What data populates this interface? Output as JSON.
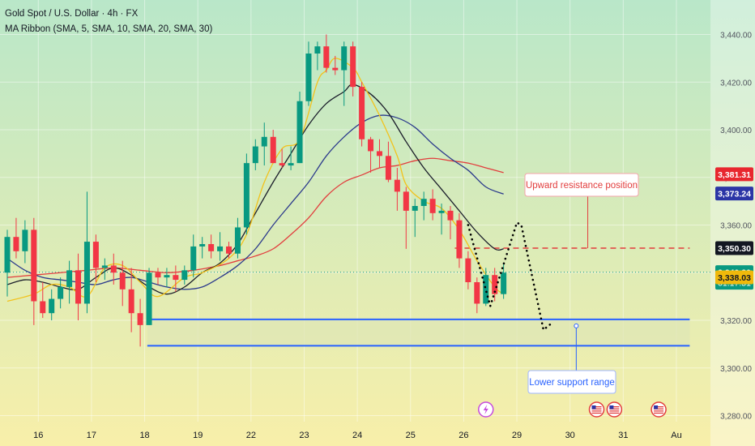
{
  "header": {
    "title": "Gold Spot / U.S. Dollar · 4h · FX",
    "indicator": "MA Ribbon (SMA, 5, SMA, 10, SMA, 20, SMA, 30)"
  },
  "colors": {
    "bull": "#089981",
    "bear": "#f23645",
    "sma5": "#f2c21b",
    "sma10": "#1b1e2b",
    "sma20": "#2c3a8c",
    "sma30": "#e23d3d",
    "resistance": "#e23d3d",
    "support": "#2962ff",
    "support_fill": "#dfe5b6",
    "projection": "#000000",
    "bg_top": "#b9e7c9",
    "bg_bottom": "#f8efa9"
  },
  "chart_data": {
    "type": "candlestick",
    "symbol": "Gold Spot / U.S. Dollar",
    "timeframe": "4h",
    "ylim": [
      3276,
      3446
    ],
    "y_ticks": [
      3280,
      3300,
      3320,
      3340,
      3360,
      3380,
      3400,
      3420,
      3440
    ],
    "y_tick_labels": [
      "3,280.00",
      "3,300.00",
      "3,320.00",
      "3,340.00",
      "3,360.00",
      "3,380.00",
      "3,400.00",
      "3,420.00",
      "3,440.00"
    ],
    "x_ticks": [
      {
        "label": "16",
        "index": 3.5
      },
      {
        "label": "17",
        "index": 9.5
      },
      {
        "label": "18",
        "index": 15.5
      },
      {
        "label": "19",
        "index": 21.5
      },
      {
        "label": "22",
        "index": 27.5
      },
      {
        "label": "23",
        "index": 33.5
      },
      {
        "label": "24",
        "index": 39.5
      },
      {
        "label": "25",
        "index": 45.5
      },
      {
        "label": "26",
        "index": 51.5
      },
      {
        "label": "29",
        "index": 57.5
      },
      {
        "label": "30",
        "index": 63.5
      },
      {
        "label": "31",
        "index": 69.5
      },
      {
        "label": "Au",
        "index": 75.5
      }
    ],
    "candles": [
      {
        "o": 3340,
        "h": 3358,
        "l": 3330,
        "c": 3355
      },
      {
        "o": 3355,
        "h": 3363,
        "l": 3346,
        "c": 3349
      },
      {
        "o": 3349,
        "h": 3362,
        "l": 3344,
        "c": 3358
      },
      {
        "o": 3358,
        "h": 3363,
        "l": 3318,
        "c": 3328
      },
      {
        "o": 3328,
        "h": 3336,
        "l": 3321,
        "c": 3323
      },
      {
        "o": 3323,
        "h": 3333,
        "l": 3320,
        "c": 3329
      },
      {
        "o": 3329,
        "h": 3338,
        "l": 3325,
        "c": 3334
      },
      {
        "o": 3334,
        "h": 3345,
        "l": 3327,
        "c": 3341
      },
      {
        "o": 3341,
        "h": 3348,
        "l": 3320,
        "c": 3327
      },
      {
        "o": 3327,
        "h": 3374,
        "l": 3323,
        "c": 3353
      },
      {
        "o": 3353,
        "h": 3356,
        "l": 3336,
        "c": 3342
      },
      {
        "o": 3342,
        "h": 3346,
        "l": 3337,
        "c": 3343
      },
      {
        "o": 3343,
        "h": 3348,
        "l": 3335,
        "c": 3340
      },
      {
        "o": 3340,
        "h": 3345,
        "l": 3326,
        "c": 3333
      },
      {
        "o": 3333,
        "h": 3342,
        "l": 3315,
        "c": 3323
      },
      {
        "o": 3323,
        "h": 3329,
        "l": 3309,
        "c": 3318
      },
      {
        "o": 3318,
        "h": 3342,
        "l": 3318,
        "c": 3340
      },
      {
        "o": 3340,
        "h": 3342,
        "l": 3335,
        "c": 3338
      },
      {
        "o": 3338,
        "h": 3342,
        "l": 3334,
        "c": 3339
      },
      {
        "o": 3339,
        "h": 3343,
        "l": 3332,
        "c": 3337
      },
      {
        "o": 3337,
        "h": 3343,
        "l": 3335,
        "c": 3341
      },
      {
        "o": 3341,
        "h": 3356,
        "l": 3338,
        "c": 3351
      },
      {
        "o": 3351,
        "h": 3355,
        "l": 3346,
        "c": 3352
      },
      {
        "o": 3352,
        "h": 3356,
        "l": 3346,
        "c": 3349
      },
      {
        "o": 3349,
        "h": 3357,
        "l": 3345,
        "c": 3351
      },
      {
        "o": 3351,
        "h": 3353,
        "l": 3346,
        "c": 3348
      },
      {
        "o": 3348,
        "h": 3363,
        "l": 3346,
        "c": 3359
      },
      {
        "o": 3359,
        "h": 3390,
        "l": 3356,
        "c": 3386
      },
      {
        "o": 3386,
        "h": 3396,
        "l": 3383,
        "c": 3393
      },
      {
        "o": 3393,
        "h": 3403,
        "l": 3385,
        "c": 3397
      },
      {
        "o": 3397,
        "h": 3400,
        "l": 3386,
        "c": 3386
      },
      {
        "o": 3386,
        "h": 3392,
        "l": 3384,
        "c": 3385
      },
      {
        "o": 3385,
        "h": 3393,
        "l": 3383,
        "c": 3386
      },
      {
        "o": 3386,
        "h": 3416,
        "l": 3386,
        "c": 3412
      },
      {
        "o": 3412,
        "h": 3437,
        "l": 3410,
        "c": 3432
      },
      {
        "o": 3432,
        "h": 3437,
        "l": 3425,
        "c": 3435
      },
      {
        "o": 3435,
        "h": 3440,
        "l": 3424,
        "c": 3426
      },
      {
        "o": 3426,
        "h": 3431,
        "l": 3423,
        "c": 3425
      },
      {
        "o": 3425,
        "h": 3437,
        "l": 3410,
        "c": 3435
      },
      {
        "o": 3435,
        "h": 3437,
        "l": 3414,
        "c": 3418
      },
      {
        "o": 3418,
        "h": 3420,
        "l": 3393,
        "c": 3396
      },
      {
        "o": 3396,
        "h": 3397,
        "l": 3382,
        "c": 3391
      },
      {
        "o": 3391,
        "h": 3396,
        "l": 3384,
        "c": 3389
      },
      {
        "o": 3389,
        "h": 3395,
        "l": 3378,
        "c": 3379
      },
      {
        "o": 3379,
        "h": 3384,
        "l": 3366,
        "c": 3374
      },
      {
        "o": 3374,
        "h": 3376,
        "l": 3350,
        "c": 3366
      },
      {
        "o": 3366,
        "h": 3371,
        "l": 3355,
        "c": 3368
      },
      {
        "o": 3368,
        "h": 3374,
        "l": 3362,
        "c": 3371
      },
      {
        "o": 3371,
        "h": 3375,
        "l": 3362,
        "c": 3365
      },
      {
        "o": 3365,
        "h": 3369,
        "l": 3356,
        "c": 3366
      },
      {
        "o": 3366,
        "h": 3368,
        "l": 3354,
        "c": 3362
      },
      {
        "o": 3362,
        "h": 3365,
        "l": 3342,
        "c": 3346
      },
      {
        "o": 3346,
        "h": 3349,
        "l": 3333,
        "c": 3336
      },
      {
        "o": 3336,
        "h": 3338,
        "l": 3323,
        "c": 3327
      },
      {
        "o": 3327,
        "h": 3342,
        "l": 3326,
        "c": 3339
      },
      {
        "o": 3339,
        "h": 3342,
        "l": 3328,
        "c": 3331
      },
      {
        "o": 3331,
        "h": 3344,
        "l": 3329,
        "c": 3340
      }
    ],
    "sma5": [
      [
        0,
        3328
      ],
      [
        3,
        3331
      ],
      [
        5,
        3335
      ],
      [
        7,
        3334
      ],
      [
        9,
        3330
      ],
      [
        11,
        3342
      ],
      [
        13,
        3343
      ],
      [
        15,
        3336
      ],
      [
        17,
        3330
      ],
      [
        20,
        3338
      ],
      [
        22,
        3340
      ],
      [
        25,
        3346
      ],
      [
        27,
        3356
      ],
      [
        29,
        3378
      ],
      [
        31,
        3392
      ],
      [
        33,
        3396
      ],
      [
        35,
        3420
      ],
      [
        36,
        3425
      ],
      [
        37,
        3430
      ],
      [
        39,
        3426
      ],
      [
        40,
        3420
      ],
      [
        42,
        3406
      ],
      [
        44,
        3389
      ],
      [
        45,
        3377
      ],
      [
        47,
        3370
      ],
      [
        49,
        3367
      ],
      [
        51,
        3358
      ],
      [
        53,
        3345
      ],
      [
        55,
        3334
      ],
      [
        56,
        3331
      ]
    ],
    "sma10": [
      [
        0,
        3335
      ],
      [
        2,
        3337
      ],
      [
        4,
        3336
      ],
      [
        6,
        3334
      ],
      [
        8,
        3333
      ],
      [
        10,
        3338
      ],
      [
        12,
        3342
      ],
      [
        14,
        3339
      ],
      [
        16,
        3334
      ],
      [
        18,
        3331
      ],
      [
        20,
        3334
      ],
      [
        22,
        3340
      ],
      [
        24,
        3344
      ],
      [
        26,
        3352
      ],
      [
        28,
        3365
      ],
      [
        30,
        3378
      ],
      [
        32,
        3390
      ],
      [
        34,
        3402
      ],
      [
        36,
        3411
      ],
      [
        38,
        3416
      ],
      [
        39,
        3419
      ],
      [
        41,
        3415
      ],
      [
        43,
        3407
      ],
      [
        45,
        3395
      ],
      [
        47,
        3384
      ],
      [
        49,
        3375
      ],
      [
        51,
        3366
      ],
      [
        53,
        3357
      ],
      [
        55,
        3350
      ],
      [
        56,
        3350
      ]
    ],
    "sma20": [
      [
        0,
        3346
      ],
      [
        2,
        3341
      ],
      [
        4,
        3338
      ],
      [
        6,
        3337
      ],
      [
        8,
        3336
      ],
      [
        10,
        3335
      ],
      [
        12,
        3337
      ],
      [
        14,
        3338
      ],
      [
        16,
        3336
      ],
      [
        18,
        3334
      ],
      [
        20,
        3333
      ],
      [
        22,
        3334
      ],
      [
        24,
        3338
      ],
      [
        26,
        3343
      ],
      [
        28,
        3350
      ],
      [
        30,
        3360
      ],
      [
        32,
        3369
      ],
      [
        34,
        3378
      ],
      [
        36,
        3389
      ],
      [
        38,
        3397
      ],
      [
        40,
        3403
      ],
      [
        42,
        3406
      ],
      [
        44,
        3405
      ],
      [
        46,
        3401
      ],
      [
        48,
        3394
      ],
      [
        50,
        3388
      ],
      [
        52,
        3383
      ],
      [
        54,
        3376
      ],
      [
        56,
        3373
      ]
    ],
    "sma30": [
      [
        0,
        3338
      ],
      [
        3,
        3339
      ],
      [
        6,
        3340
      ],
      [
        9,
        3341
      ],
      [
        12,
        3342
      ],
      [
        15,
        3341
      ],
      [
        18,
        3340
      ],
      [
        21,
        3341
      ],
      [
        24,
        3343
      ],
      [
        26,
        3345
      ],
      [
        28,
        3347
      ],
      [
        30,
        3350
      ],
      [
        32,
        3356
      ],
      [
        34,
        3363
      ],
      [
        36,
        3372
      ],
      [
        38,
        3378
      ],
      [
        40,
        3381
      ],
      [
        42,
        3384
      ],
      [
        44,
        3385
      ],
      [
        46,
        3387
      ],
      [
        48,
        3388
      ],
      [
        50,
        3387
      ],
      [
        52,
        3386
      ],
      [
        54,
        3384
      ],
      [
        56,
        3382
      ]
    ],
    "current_price": 3340.2,
    "countdown": "01:17:51",
    "resistance": {
      "price": 3350.3,
      "x_start": 50.5,
      "x_end": 77,
      "label": "Upward resistance position"
    },
    "support_zone": {
      "upper": 3320.4,
      "lower": 3309.3,
      "x_start": 15.8,
      "x_end": 77,
      "label": "Lower support range"
    },
    "projection_path": [
      [
        52,
        3360
      ],
      [
        54.5,
        3326
      ],
      [
        57.5,
        3361
      ],
      [
        58,
        3360
      ],
      [
        60.5,
        3316
      ],
      [
        61.5,
        3319
      ]
    ],
    "price_labels": [
      {
        "text": "3,381.31",
        "price": 3381.31,
        "bg": "#e8272f",
        "fg": "#ffffff"
      },
      {
        "text": "3,373.24",
        "price": 3373.24,
        "bg": "#2b35a6",
        "fg": "#ffffff"
      },
      {
        "text": "3,350.30",
        "price": 3350.3,
        "bg": "#131722",
        "fg": "#ffffff"
      },
      {
        "text": "3,340.20",
        "price": 3340.2,
        "bg": "#089981",
        "fg": "#ffffff",
        "sub": "01:17:51"
      },
      {
        "text": "3,338.03",
        "price": 3338.03,
        "bg": "#f0b90b",
        "fg": "#131722"
      }
    ],
    "events": [
      {
        "kind": "lightning",
        "index": 54
      },
      {
        "kind": "flag",
        "index": 66.5
      },
      {
        "kind": "flag",
        "index": 68.5
      },
      {
        "kind": "flag",
        "index": 73.5
      }
    ]
  }
}
